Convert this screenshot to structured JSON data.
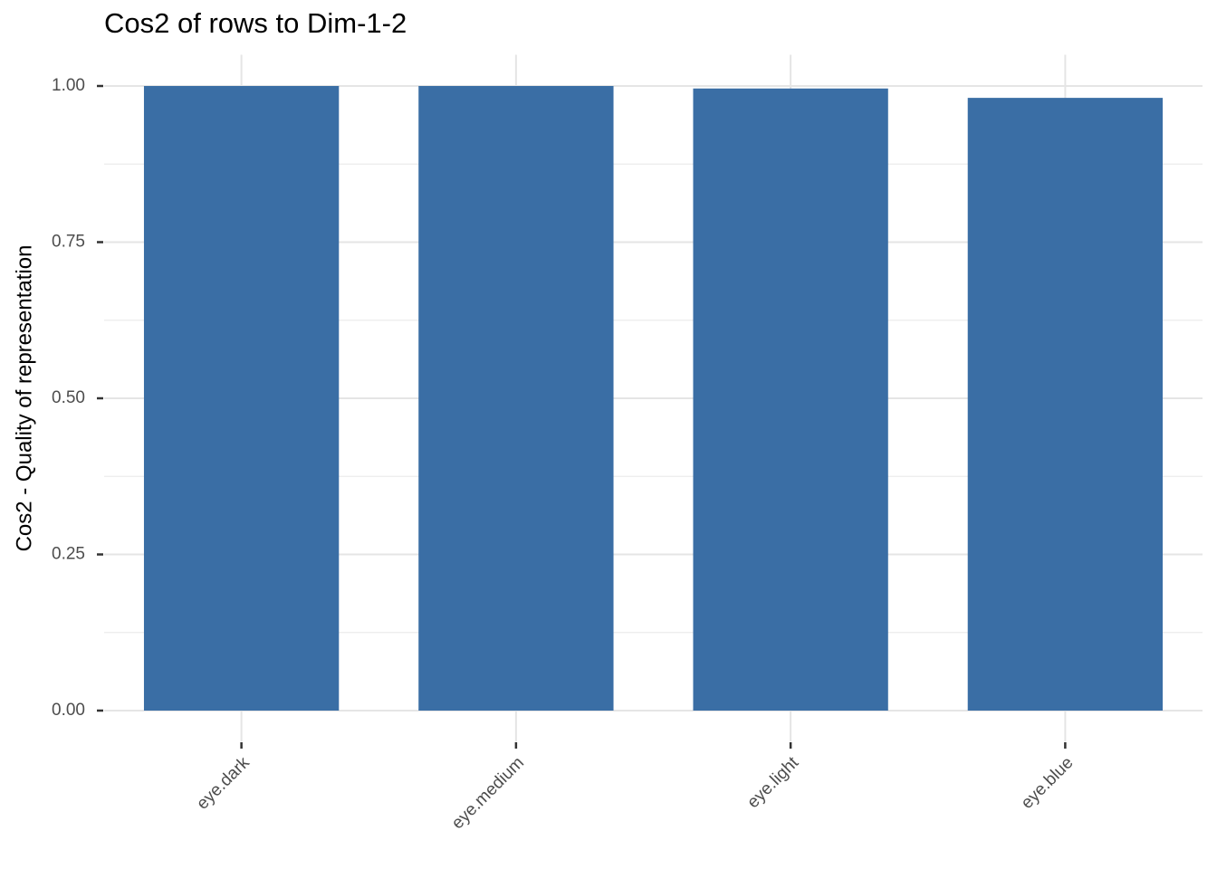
{
  "chart_data": {
    "type": "bar",
    "title": "Cos2 of rows to Dim-1-2",
    "y_label": "Cos2 - Quality of representation",
    "categories": [
      "eye.dark",
      "eye.medium",
      "eye.light",
      "eye.blue"
    ],
    "values": [
      1.0,
      1.0,
      0.996,
      0.981
    ],
    "color": "#3a6ea5",
    "ylim": [
      -0.05,
      1.05
    ],
    "yticks": [
      {
        "value": 0,
        "label": "0.00"
      },
      {
        "value": 0.25,
        "label": "0.25"
      },
      {
        "value": 0.5,
        "label": "0.50"
      },
      {
        "value": 0.75,
        "label": "0.75"
      },
      {
        "value": 1,
        "label": "1.00"
      }
    ],
    "grid": true
  }
}
